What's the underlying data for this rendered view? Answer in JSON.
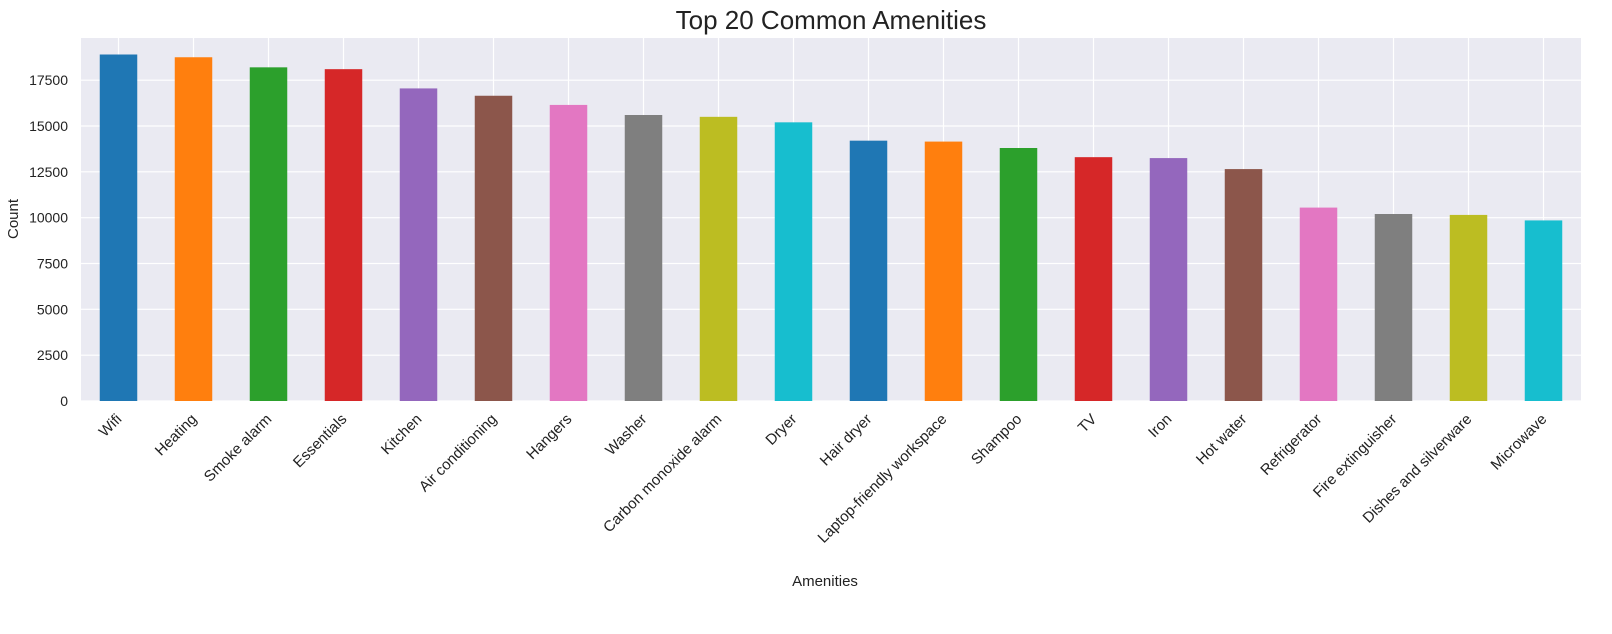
{
  "chart_data": {
    "type": "bar",
    "title": "Top 20 Common Amenities",
    "xlabel": "Amenities",
    "ylabel": "Count",
    "ylim": [
      0,
      19800
    ],
    "yticks": [
      0,
      2500,
      5000,
      7500,
      10000,
      12500,
      15000,
      17500
    ],
    "grid": true,
    "categories": [
      "Wifi",
      "Heating",
      "Smoke alarm",
      "Essentials",
      "Kitchen",
      "Air conditioning",
      "Hangers",
      "Washer",
      "Carbon monoxide alarm",
      "Dryer",
      "Hair dryer",
      "Laptop-friendly workspace",
      "Shampoo",
      "TV",
      "Iron",
      "Hot water",
      "Refrigerator",
      "Fire extinguisher",
      "Dishes and silverware",
      "Microwave"
    ],
    "values": [
      18900,
      18750,
      18200,
      18100,
      17050,
      16650,
      16150,
      15600,
      15500,
      15200,
      14200,
      14150,
      13800,
      13300,
      13250,
      12650,
      10550,
      10200,
      10150,
      9850
    ],
    "colors": [
      "#1f77b4",
      "#ff7f0e",
      "#2ca02c",
      "#d62728",
      "#9467bd",
      "#8c564b",
      "#e377c2",
      "#7f7f7f",
      "#bcbd22",
      "#17becf",
      "#1f77b4",
      "#ff7f0e",
      "#2ca02c",
      "#d62728",
      "#9467bd",
      "#8c564b",
      "#e377c2",
      "#7f7f7f",
      "#bcbd22",
      "#17becf"
    ],
    "background_color": "#eaeaf2",
    "grid_color": "#ffffff"
  }
}
